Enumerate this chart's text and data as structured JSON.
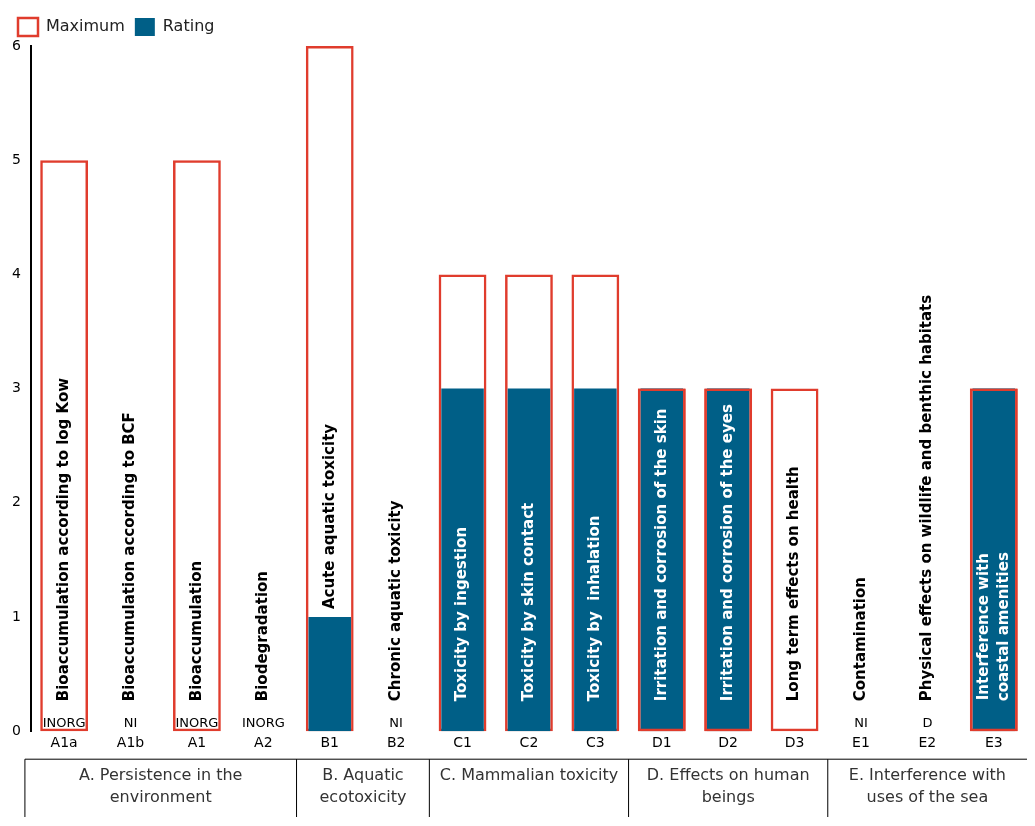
{
  "chart_data": {
    "type": "bar",
    "categories": [
      "A1a",
      "A1b",
      "A1",
      "A2",
      "B1",
      "B2",
      "C1",
      "C2",
      "C3",
      "D1",
      "D2",
      "D3",
      "E1",
      "E2",
      "E3"
    ],
    "series": [
      {
        "name": "Maximum",
        "color": "#e03c2d",
        "values": [
          5,
          null,
          5,
          null,
          6,
          null,
          4,
          4,
          4,
          3,
          3,
          3,
          null,
          null,
          3
        ]
      },
      {
        "name": "Rating",
        "color": "#005f87",
        "values": [
          null,
          null,
          null,
          null,
          1,
          null,
          3,
          3,
          3,
          3,
          3,
          null,
          null,
          null,
          3
        ],
        "value_labels": [
          "INORG",
          "NI",
          "INORG",
          "INORG",
          null,
          "NI",
          null,
          null,
          null,
          null,
          null,
          null,
          "NI",
          "D",
          null
        ]
      }
    ],
    "ylim": [
      0,
      6
    ],
    "yticks": [
      0,
      1,
      2,
      3,
      4,
      5,
      6
    ],
    "grid": false,
    "legend": "top left",
    "annotations": [
      "Bioaccumulation according to log Kow",
      "Bioaccumulation according to BCF",
      "Bioaccumulation",
      "Biodegradation",
      "Acute aquatic toxicity",
      "Chronic aquatic toxicity",
      "Toxicity by ingestion",
      "Toxicity by skin contact",
      "Toxicity by  inhalation",
      "Irritation and corrosion of the skin",
      "Irritation and corrosion of the eyes",
      "Long term effects on health",
      "Contamination",
      "Physical effects on wildlife and benthic habitats",
      "Interference with\ncoastal amenities",
      "A. Persistence in the environment",
      "B. Aquatic ecotoxicity",
      "C. Mammalian toxicity",
      "D. Effects on human beings",
      "E. Interference with uses of the sea"
    ]
  }
}
